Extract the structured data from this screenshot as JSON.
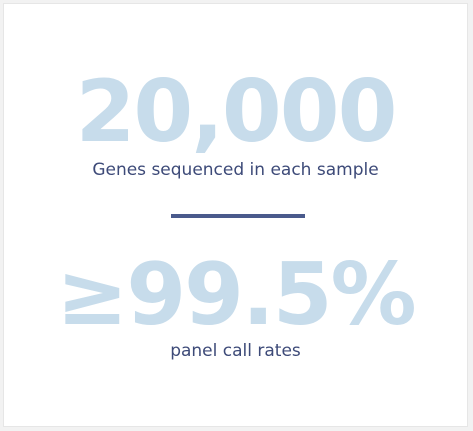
{
  "stats": [
    {
      "value": "20,000",
      "label": "Genes sequenced in each sample"
    },
    {
      "value": "≥99.5%",
      "label": "panel call rates"
    }
  ],
  "colors": {
    "value_color": "#c7dceb",
    "label_color": "#3d4a78",
    "divider_color": "#4a5a8c",
    "card_background": "#ffffff"
  }
}
